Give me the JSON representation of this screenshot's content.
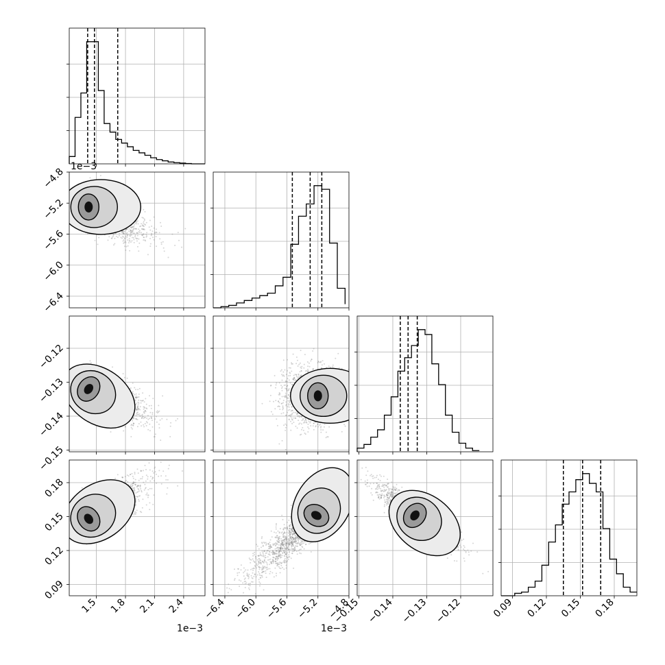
{
  "chart_data": {
    "type": "corner",
    "grid": true,
    "parameters": [
      {
        "index": 0,
        "range": [
          1.22,
          2.62
        ],
        "offset_label": "1e−3",
        "ticks": [
          {
            "value": 1.5,
            "label": "1.5"
          },
          {
            "value": 1.8,
            "label": "1.8"
          },
          {
            "value": 2.1,
            "label": "2.1"
          },
          {
            "value": 2.4,
            "label": "2.4"
          }
        ]
      },
      {
        "index": 1,
        "range": [
          -6.55,
          -4.8
        ],
        "offset_label": "1e−3",
        "ticks": [
          {
            "value": -6.4,
            "label": "−6.4"
          },
          {
            "value": -6.0,
            "label": "−6.0"
          },
          {
            "value": -5.6,
            "label": "−5.6"
          },
          {
            "value": -5.2,
            "label": "−5.2"
          },
          {
            "value": -4.8,
            "label": "−4.8"
          }
        ]
      },
      {
        "index": 2,
        "range": [
          -0.1505,
          -0.1105
        ],
        "offset_label": "",
        "ticks": [
          {
            "value": -0.15,
            "label": "−0.15"
          },
          {
            "value": -0.14,
            "label": "−0.14"
          },
          {
            "value": -0.13,
            "label": "−0.13"
          },
          {
            "value": -0.12,
            "label": "−0.12"
          }
        ]
      },
      {
        "index": 3,
        "range": [
          0.08,
          0.2
        ],
        "offset_label": "",
        "ticks": [
          {
            "value": 0.09,
            "label": "0.09"
          },
          {
            "value": 0.12,
            "label": "0.12"
          },
          {
            "value": 0.15,
            "label": "0.15"
          },
          {
            "value": 0.18,
            "label": "0.18"
          }
        ]
      }
    ],
    "histograms": [
      {
        "param": 0,
        "bins": [
          1.22,
          1.28,
          1.34,
          1.4,
          1.46,
          1.52,
          1.58,
          1.64,
          1.7,
          1.76,
          1.82,
          1.88,
          1.94,
          2.0,
          2.06,
          2.12,
          2.18,
          2.24,
          2.3,
          2.36,
          2.42,
          2.48,
          2.54,
          2.62
        ],
        "counts": [
          0.06,
          0.38,
          0.58,
          1.0,
          1.0,
          0.6,
          0.33,
          0.26,
          0.2,
          0.17,
          0.14,
          0.11,
          0.09,
          0.07,
          0.05,
          0.035,
          0.025,
          0.015,
          0.01,
          0.006,
          0.003,
          0.0,
          0.0
        ],
        "quantiles": [
          1.41,
          1.48,
          1.72
        ]
      },
      {
        "param": 1,
        "bins": [
          -6.55,
          -6.45,
          -6.35,
          -6.25,
          -6.15,
          -6.05,
          -5.95,
          -5.85,
          -5.75,
          -5.65,
          -5.55,
          -5.45,
          -5.35,
          -5.25,
          -5.15,
          -5.05,
          -4.95,
          -4.85
        ],
        "counts": [
          0.0,
          0.01,
          0.02,
          0.04,
          0.06,
          0.08,
          0.1,
          0.12,
          0.18,
          0.25,
          0.52,
          0.75,
          0.85,
          1.0,
          0.97,
          0.53,
          0.16,
          0.03
        ],
        "quantiles": [
          -5.53,
          -5.3,
          -5.15
        ]
      },
      {
        "param": 2,
        "bins": [
          -0.1505,
          -0.1485,
          -0.1465,
          -0.1445,
          -0.1425,
          -0.1405,
          -0.1385,
          -0.1365,
          -0.1345,
          -0.1325,
          -0.1305,
          -0.1285,
          -0.1265,
          -0.1245,
          -0.1225,
          -0.1205,
          -0.1185,
          -0.1165,
          -0.1145
        ],
        "counts": [
          0.03,
          0.06,
          0.12,
          0.18,
          0.3,
          0.45,
          0.66,
          0.77,
          0.87,
          1.0,
          0.96,
          0.72,
          0.55,
          0.3,
          0.16,
          0.07,
          0.03,
          0.01
        ],
        "quantiles": [
          -0.1378,
          -0.1355,
          -0.1328
        ]
      },
      {
        "param": 3,
        "bins": [
          0.08,
          0.086,
          0.092,
          0.098,
          0.104,
          0.11,
          0.116,
          0.122,
          0.128,
          0.134,
          0.14,
          0.146,
          0.152,
          0.158,
          0.164,
          0.17,
          0.176,
          0.182,
          0.188,
          0.194,
          0.2
        ],
        "counts": [
          0.0,
          0.0,
          0.02,
          0.03,
          0.07,
          0.12,
          0.25,
          0.44,
          0.58,
          0.75,
          0.85,
          0.95,
          1.0,
          0.92,
          0.85,
          0.55,
          0.3,
          0.18,
          0.07,
          0.03
        ],
        "quantiles": [
          0.135,
          0.152,
          0.168
        ]
      }
    ],
    "pairs": [
      {
        "x": 0,
        "y": 1,
        "peak": [
          1.42,
          -5.25
        ]
      },
      {
        "x": 0,
        "y": 2,
        "peak": [
          1.42,
          -0.132
        ]
      },
      {
        "x": 1,
        "y": 2,
        "peak": [
          -5.2,
          -0.134
        ]
      },
      {
        "x": 0,
        "y": 3,
        "peak": [
          1.42,
          0.148
        ]
      },
      {
        "x": 1,
        "y": 3,
        "peak": [
          -5.22,
          0.151
        ]
      },
      {
        "x": 2,
        "y": 3,
        "peak": [
          -0.1335,
          0.151
        ]
      }
    ]
  }
}
